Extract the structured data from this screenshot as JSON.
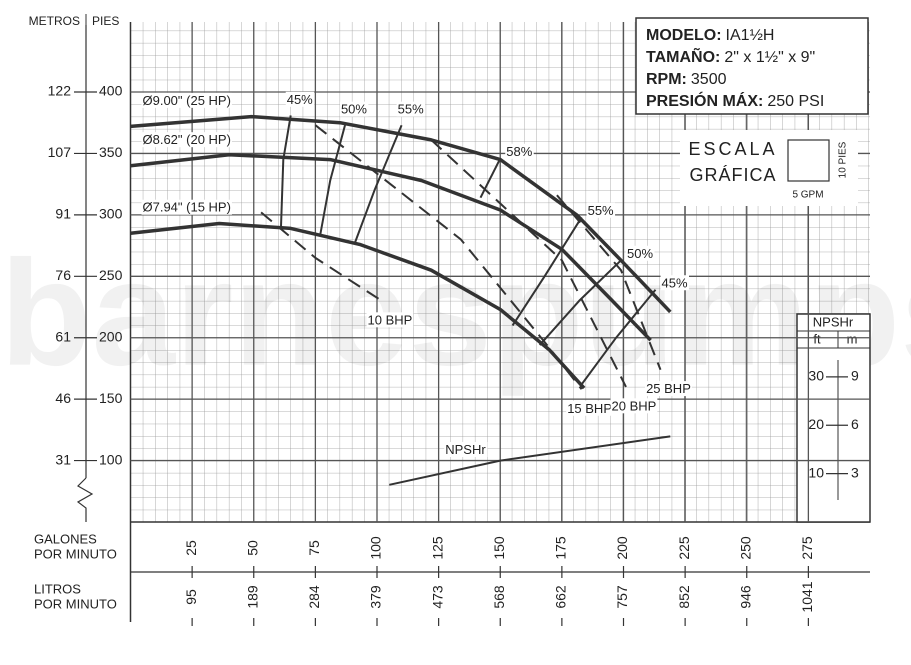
{
  "chart_data": {
    "type": "line",
    "watermark": "barnespumps",
    "ylabel_left": "METROS",
    "ylabel_right": "PIES",
    "xlabel": [
      "GALONES",
      "POR MINUTO"
    ],
    "x2label": [
      "LITROS",
      "POR MINUTO"
    ],
    "xlim": [
      0,
      300
    ],
    "ylim": [
      50,
      457
    ],
    "xticks": [
      25,
      50,
      75,
      100,
      125,
      150,
      175,
      200,
      225,
      250,
      275
    ],
    "x2ticks": [
      {
        "value": 25,
        "label": "95"
      },
      {
        "value": 50,
        "label": "189"
      },
      {
        "value": 75,
        "label": "284"
      },
      {
        "value": 100,
        "label": "379"
      },
      {
        "value": 125,
        "label": "473"
      },
      {
        "value": 150,
        "label": "568"
      },
      {
        "value": 175,
        "label": "662"
      },
      {
        "value": 200,
        "label": "757"
      },
      {
        "value": 225,
        "label": "852"
      },
      {
        "value": 250,
        "label": "946"
      },
      {
        "value": 275,
        "label": "1041"
      }
    ],
    "yticks": [
      100,
      150,
      200,
      250,
      300,
      350,
      400
    ],
    "ymticks": [
      {
        "value": 100,
        "label": "31"
      },
      {
        "value": 150,
        "label": "46"
      },
      {
        "value": 200,
        "label": "61"
      },
      {
        "value": 250,
        "label": "76"
      },
      {
        "value": 300,
        "label": "91"
      },
      {
        "value": 350,
        "label": "107"
      },
      {
        "value": 400,
        "label": "122"
      }
    ],
    "grid": true,
    "y2title": "NPSHr",
    "y2label_left": "ft",
    "y2label_right": "m",
    "y2lim": [
      0,
      43
    ],
    "y2ticks": [
      10,
      20,
      30
    ],
    "y2mticks": [
      {
        "value": 10,
        "label": "3"
      },
      {
        "value": 20,
        "label": "6"
      },
      {
        "value": 30,
        "label": "9"
      }
    ],
    "series": [
      {
        "name": "Ø9.00\" (25 HP)",
        "color": "#333333",
        "width": 3.5,
        "dashed": false,
        "x": [
          0,
          49,
          85,
          122,
          150,
          181,
          199,
          219
        ],
        "values": [
          372,
          380,
          375,
          361,
          345,
          300,
          263,
          221
        ]
      },
      {
        "name": "Ø8.62\" (20 HP)",
        "color": "#333333",
        "width": 3.5,
        "dashed": false,
        "x": [
          0,
          40,
          81,
          118,
          150,
          175,
          195,
          211
        ],
        "values": [
          340,
          349,
          345,
          328,
          304,
          272,
          231,
          198
        ]
      },
      {
        "name": "Ø7.94\" (15 HP)",
        "color": "#333333",
        "width": 3.5,
        "dashed": false,
        "x": [
          0,
          36,
          65,
          93,
          122,
          150,
          170,
          184
        ],
        "values": [
          285,
          293,
          289,
          276,
          255,
          223,
          190,
          159
        ]
      },
      {
        "name": "45%",
        "color": "#333333",
        "width": 2,
        "dashed": false,
        "x": [
          65,
          62,
          61
        ],
        "values": [
          381,
          345,
          288
        ]
      },
      {
        "name": "50%",
        "color": "#333333",
        "width": 2,
        "dashed": false,
        "x": [
          87,
          81,
          77
        ],
        "values": [
          373,
          328,
          284
        ]
      },
      {
        "name": "55%",
        "color": "#333333",
        "width": 2,
        "dashed": false,
        "x": [
          110,
          99,
          91
        ],
        "values": [
          373,
          320,
          277
        ]
      },
      {
        "name": "58%",
        "color": "#333333",
        "width": 2,
        "dashed": false,
        "x": [
          150,
          142
        ],
        "values": [
          346,
          314
        ]
      },
      {
        "name": "55%",
        "color": "#333333",
        "width": 2,
        "dashed": false,
        "x": [
          183,
          168,
          155
        ],
        "values": [
          298,
          250,
          210
        ]
      },
      {
        "name": "50%",
        "color": "#333333",
        "width": 2,
        "dashed": false,
        "x": [
          199,
          182,
          166
        ],
        "values": [
          263,
          230,
          194
        ]
      },
      {
        "name": "45%",
        "color": "#333333",
        "width": 2,
        "dashed": false,
        "x": [
          213,
          197,
          183
        ],
        "values": [
          239,
          200,
          162
        ]
      },
      {
        "name": "10 BHP",
        "color": "#333333",
        "width": 2,
        "dashed": true,
        "x": [
          53,
          75,
          102
        ],
        "values": [
          302,
          265,
          230
        ]
      },
      {
        "name": "15 BHP",
        "color": "#333333",
        "width": 2,
        "dashed": true,
        "x": [
          75,
          134,
          169,
          183
        ],
        "values": [
          373,
          280,
          194,
          158
        ]
      },
      {
        "name": "20 BHP",
        "color": "#333333",
        "width": 2,
        "dashed": true,
        "x": [
          122,
          175,
          201
        ],
        "values": [
          361,
          263,
          160
        ]
      },
      {
        "name": "25 BHP",
        "color": "#333333",
        "width": 2,
        "dashed": true,
        "x": [
          173,
          199,
          215
        ],
        "values": [
          316,
          255,
          174
        ]
      },
      {
        "name": "NPSHr",
        "color": "#333333",
        "width": 2,
        "dashed": false,
        "axis": "y2",
        "x": [
          105,
          150,
          219
        ],
        "values": [
          7.7,
          12.7,
          17.7
        ]
      }
    ],
    "info": [
      {
        "label": "MODELO:",
        "value": "IA1½H"
      },
      {
        "label": "TAMAÑO:",
        "value": "2\" x 1½\" x 9\""
      },
      {
        "label": "RPM:",
        "value": "3500"
      },
      {
        "label": "PRESIÓN MÁX:",
        "value": "250 PSI"
      }
    ],
    "scale": {
      "title1": "ESCALA",
      "title2": "GRÁFICA",
      "height_label": "10 PIES",
      "width_label": "5 GPM"
    }
  }
}
